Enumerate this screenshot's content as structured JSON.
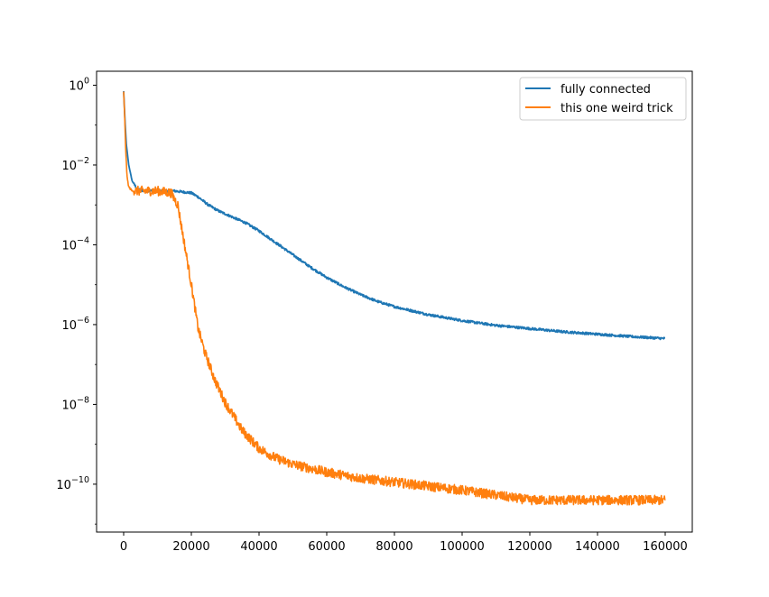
{
  "chart_data": {
    "type": "line",
    "title": "",
    "xlabel": "",
    "ylabel": "",
    "xlim": [
      -8000,
      168000
    ],
    "ylim_log10": [
      -11.2,
      0.35
    ],
    "yscale": "log",
    "grid": false,
    "legend_position": "top-right",
    "x_ticks": [
      {
        "value": 0,
        "label": "0"
      },
      {
        "value": 20000,
        "label": "20000"
      },
      {
        "value": 40000,
        "label": "40000"
      },
      {
        "value": 60000,
        "label": "60000"
      },
      {
        "value": 80000,
        "label": "80000"
      },
      {
        "value": 100000,
        "label": "100000"
      },
      {
        "value": 120000,
        "label": "120000"
      },
      {
        "value": 140000,
        "label": "140000"
      },
      {
        "value": 160000,
        "label": "160000"
      }
    ],
    "y_ticks": [
      {
        "exp": 0,
        "base": "10",
        "sup": "0"
      },
      {
        "exp": -2,
        "base": "10",
        "sup": "−2"
      },
      {
        "exp": -4,
        "base": "10",
        "sup": "−4"
      },
      {
        "exp": -6,
        "base": "10",
        "sup": "−6"
      },
      {
        "exp": -8,
        "base": "10",
        "sup": "−8"
      },
      {
        "exp": -10,
        "base": "10",
        "sup": "−10"
      }
    ],
    "series": [
      {
        "name": "fully connected",
        "color": "#1f77b4",
        "noise_log10": 0.03,
        "x": [
          0,
          400,
          800,
          1500,
          2500,
          4000,
          6000,
          10000,
          15000,
          20000,
          22000,
          25000,
          28000,
          32000,
          36000,
          40000,
          45000,
          50000,
          55000,
          60000,
          65000,
          70000,
          75000,
          80000,
          90000,
          100000,
          110000,
          120000,
          130000,
          140000,
          150000,
          160000
        ],
        "y_log10": [
          -0.15,
          -0.9,
          -1.5,
          -2.0,
          -2.4,
          -2.6,
          -2.65,
          -2.65,
          -2.65,
          -2.7,
          -2.8,
          -3.0,
          -3.15,
          -3.3,
          -3.45,
          -3.65,
          -3.95,
          -4.25,
          -4.55,
          -4.82,
          -5.05,
          -5.25,
          -5.42,
          -5.55,
          -5.75,
          -5.9,
          -6.02,
          -6.1,
          -6.18,
          -6.24,
          -6.3,
          -6.35
        ]
      },
      {
        "name": "this one weird trick",
        "color": "#ff7f0e",
        "noise_log10": 0.12,
        "x": [
          0,
          300,
          600,
          1000,
          1500,
          2500,
          5000,
          10000,
          14000,
          16000,
          18000,
          20000,
          22000,
          24000,
          27000,
          30000,
          35000,
          40000,
          45000,
          50000,
          60000,
          70000,
          80000,
          100000,
          120000,
          140000,
          160000
        ],
        "y_log10": [
          -0.15,
          -0.8,
          -1.6,
          -2.3,
          -2.55,
          -2.65,
          -2.65,
          -2.65,
          -2.7,
          -3.0,
          -4.0,
          -5.0,
          -6.1,
          -6.7,
          -7.4,
          -7.95,
          -8.65,
          -9.1,
          -9.35,
          -9.5,
          -9.7,
          -9.85,
          -9.95,
          -10.15,
          -10.4,
          -10.4,
          -10.4
        ]
      }
    ]
  }
}
